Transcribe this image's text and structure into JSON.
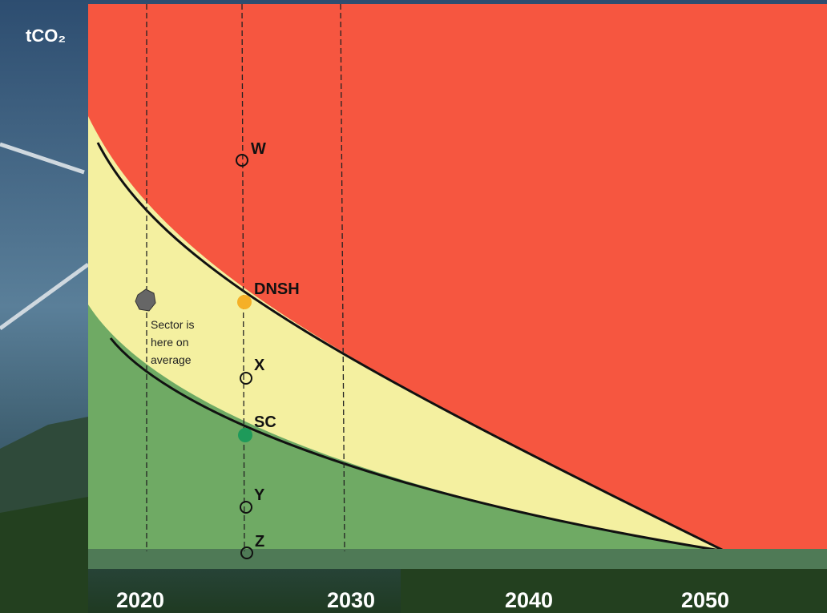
{
  "axis_label": "tCO₂",
  "years": [
    "2020",
    "2030",
    "2040",
    "2050"
  ],
  "points": [
    {
      "label": "W"
    },
    {
      "label": "DNSH"
    },
    {
      "label": "X"
    },
    {
      "label": "SC"
    },
    {
      "label": "Y"
    },
    {
      "label": "Z"
    }
  ],
  "annotation": {
    "lines": [
      "Sector is",
      "here on",
      "average"
    ]
  }
}
